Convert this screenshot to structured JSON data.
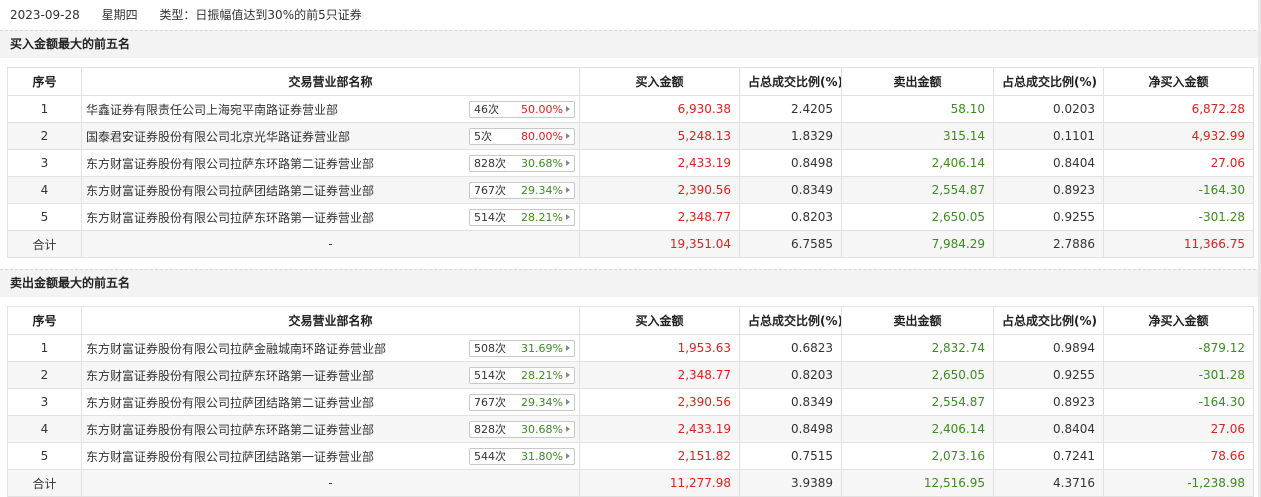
{
  "header": {
    "date": "2023-09-28",
    "weekday": "星期四",
    "type_text": "类型：日振幅值达到30%的前5只证券"
  },
  "columns": [
    "序号",
    "交易营业部名称",
    "买入金额",
    "占总成交比例(%)",
    "卖出金额",
    "占总成交比例(%)",
    "净买入金额"
  ],
  "buy_section": {
    "title": "买入金额最大的前五名",
    "rows": [
      {
        "idx": "1",
        "name": "华鑫证券有限责任公司上海宛平南路证券营业部",
        "count": "46次",
        "pct": "50.00%",
        "pct_color": "red",
        "buy": "6,930.38",
        "buy_ratio": "2.4205",
        "sell": "58.10",
        "sell_ratio": "0.0203",
        "net": "6,872.28",
        "net_color": "red"
      },
      {
        "idx": "2",
        "name": "国泰君安证券股份有限公司北京光华路证券营业部",
        "count": "5次",
        "pct": "80.00%",
        "pct_color": "red",
        "buy": "5,248.13",
        "buy_ratio": "1.8329",
        "sell": "315.14",
        "sell_ratio": "0.1101",
        "net": "4,932.99",
        "net_color": "red"
      },
      {
        "idx": "3",
        "name": "东方财富证券股份有限公司拉萨东环路第二证券营业部",
        "count": "828次",
        "pct": "30.68%",
        "pct_color": "green",
        "buy": "2,433.19",
        "buy_ratio": "0.8498",
        "sell": "2,406.14",
        "sell_ratio": "0.8404",
        "net": "27.06",
        "net_color": "red"
      },
      {
        "idx": "4",
        "name": "东方财富证券股份有限公司拉萨团结路第二证券营业部",
        "count": "767次",
        "pct": "29.34%",
        "pct_color": "green",
        "buy": "2,390.56",
        "buy_ratio": "0.8349",
        "sell": "2,554.87",
        "sell_ratio": "0.8923",
        "net": "-164.30",
        "net_color": "green"
      },
      {
        "idx": "5",
        "name": "东方财富证券股份有限公司拉萨东环路第一证券营业部",
        "count": "514次",
        "pct": "28.21%",
        "pct_color": "green",
        "buy": "2,348.77",
        "buy_ratio": "0.8203",
        "sell": "2,650.05",
        "sell_ratio": "0.9255",
        "net": "-301.28",
        "net_color": "green"
      }
    ],
    "total": {
      "label": "合计",
      "name": "-",
      "buy": "19,351.04",
      "buy_ratio": "6.7585",
      "sell": "7,984.29",
      "sell_ratio": "2.7886",
      "net": "11,366.75",
      "net_color": "red"
    }
  },
  "sell_section": {
    "title": "卖出金额最大的前五名",
    "rows": [
      {
        "idx": "1",
        "name": "东方财富证券股份有限公司拉萨金融城南环路证券营业部",
        "count": "508次",
        "pct": "31.69%",
        "pct_color": "green",
        "buy": "1,953.63",
        "buy_ratio": "0.6823",
        "sell": "2,832.74",
        "sell_ratio": "0.9894",
        "net": "-879.12",
        "net_color": "green"
      },
      {
        "idx": "2",
        "name": "东方财富证券股份有限公司拉萨东环路第一证券营业部",
        "count": "514次",
        "pct": "28.21%",
        "pct_color": "green",
        "buy": "2,348.77",
        "buy_ratio": "0.8203",
        "sell": "2,650.05",
        "sell_ratio": "0.9255",
        "net": "-301.28",
        "net_color": "green"
      },
      {
        "idx": "3",
        "name": "东方财富证券股份有限公司拉萨团结路第二证券营业部",
        "count": "767次",
        "pct": "29.34%",
        "pct_color": "green",
        "buy": "2,390.56",
        "buy_ratio": "0.8349",
        "sell": "2,554.87",
        "sell_ratio": "0.8923",
        "net": "-164.30",
        "net_color": "green"
      },
      {
        "idx": "4",
        "name": "东方财富证券股份有限公司拉萨东环路第二证券营业部",
        "count": "828次",
        "pct": "30.68%",
        "pct_color": "green",
        "buy": "2,433.19",
        "buy_ratio": "0.8498",
        "sell": "2,406.14",
        "sell_ratio": "0.8404",
        "net": "27.06",
        "net_color": "red"
      },
      {
        "idx": "5",
        "name": "东方财富证券股份有限公司拉萨团结路第一证券营业部",
        "count": "544次",
        "pct": "31.80%",
        "pct_color": "green",
        "buy": "2,151.82",
        "buy_ratio": "0.7515",
        "sell": "2,073.16",
        "sell_ratio": "0.7241",
        "net": "78.66",
        "net_color": "red"
      }
    ],
    "total": {
      "label": "合计",
      "name": "-",
      "buy": "11,277.98",
      "buy_ratio": "3.9389",
      "sell": "12,516.95",
      "sell_ratio": "4.3716",
      "net": "-1,238.98",
      "net_color": "green"
    }
  }
}
